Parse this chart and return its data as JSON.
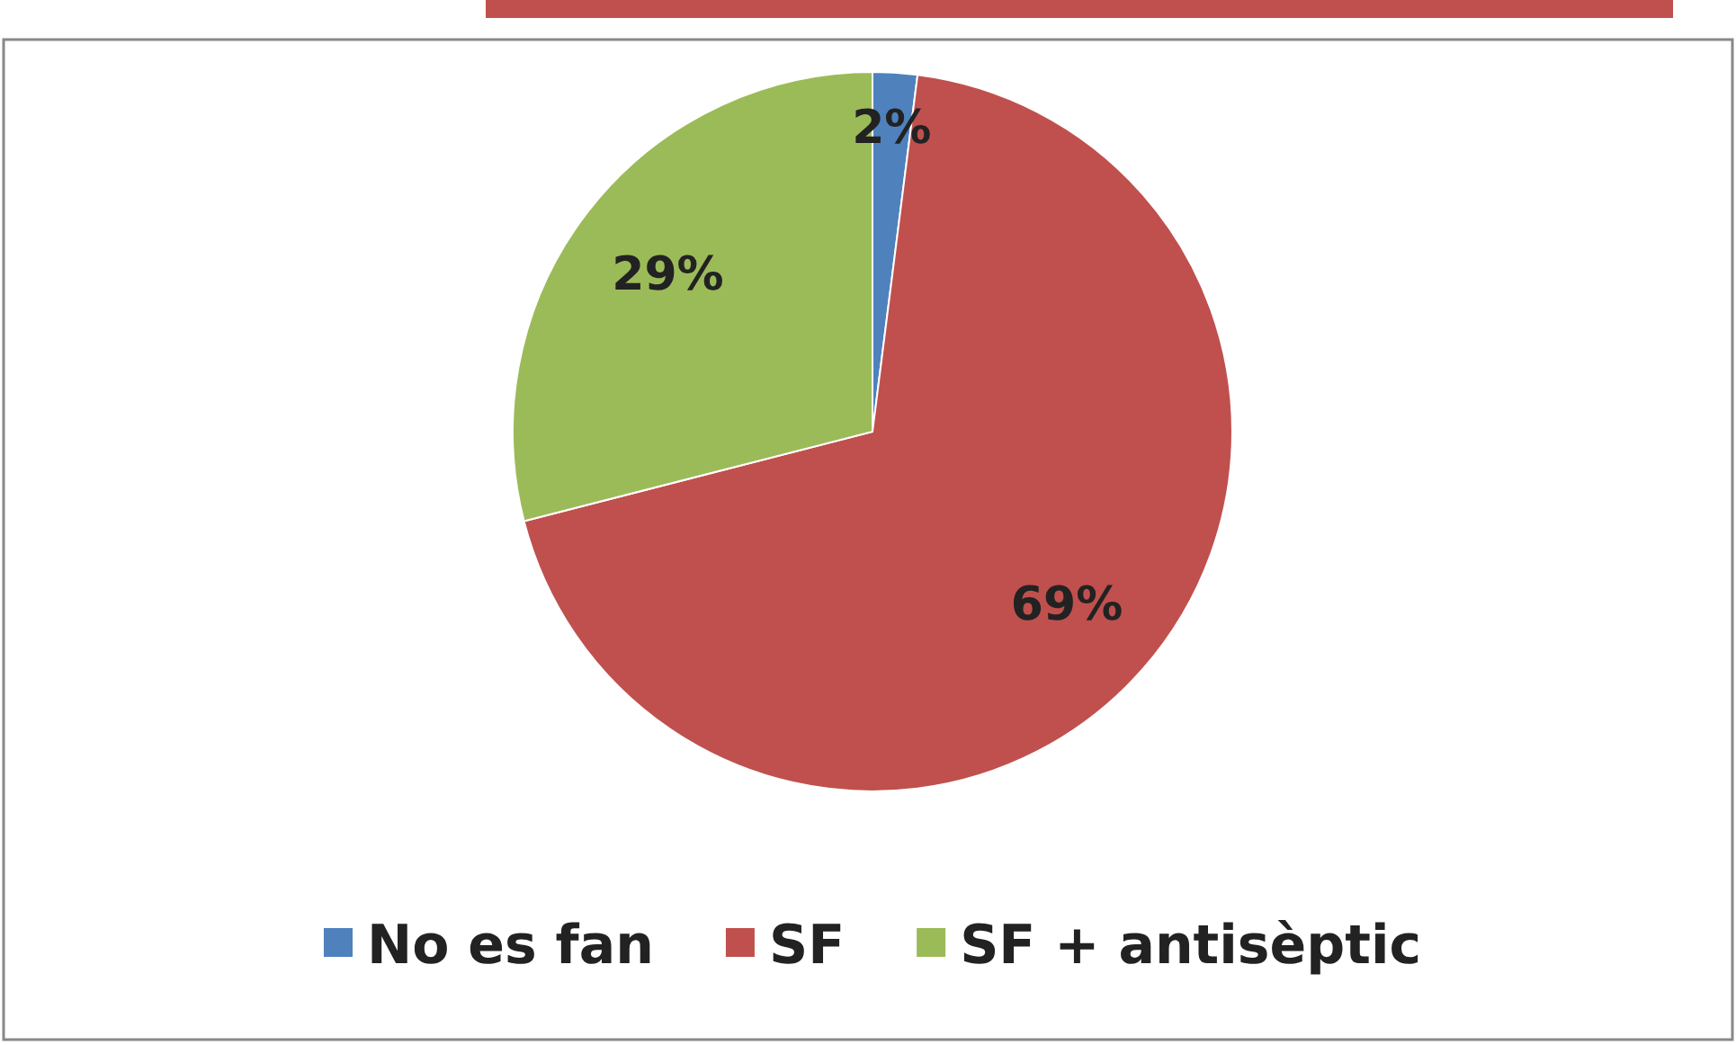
{
  "chart_data": {
    "type": "pie",
    "categories": [
      "No es fan",
      "SF",
      "SF + antisèptic"
    ],
    "values": [
      2,
      69,
      29
    ],
    "colors": [
      "#4f81bd",
      "#c0504d",
      "#9bbb59"
    ],
    "value_labels": [
      "2%",
      "69%",
      "29%"
    ],
    "legend": "bottom"
  }
}
